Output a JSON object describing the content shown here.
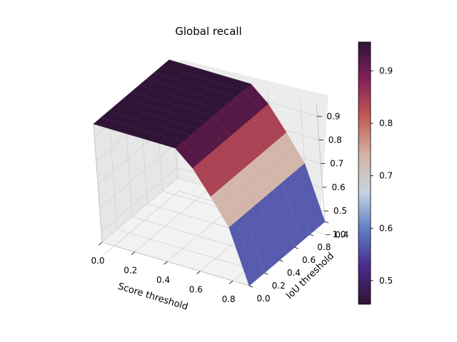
{
  "chart_data": {
    "type": "surface",
    "title": "Global recall",
    "xlabel": "Score threshold",
    "ylabel": "IoU threshold",
    "zlabel": "",
    "x_ticks": [
      "0.0",
      "0.2",
      "0.4",
      "0.6",
      "0.8"
    ],
    "y_ticks": [
      "0.0",
      "0.2",
      "0.4",
      "0.6",
      "0.8",
      "1.0"
    ],
    "z_ticks": [
      "0.4",
      "0.5",
      "0.6",
      "0.7",
      "0.8",
      "0.9"
    ],
    "xlim": [
      0,
      0.9
    ],
    "ylim": [
      0,
      1.0
    ],
    "zlim": [
      0.455,
      0.955
    ],
    "score_threshold": [
      0.0,
      0.1,
      0.2,
      0.3,
      0.4,
      0.5,
      0.6,
      0.7,
      0.8,
      0.9
    ],
    "iou_threshold": [
      0.0,
      0.1,
      0.2,
      0.3,
      0.4,
      0.5,
      0.6,
      0.7,
      0.8,
      0.9,
      1.0
    ],
    "recall_by_score_threshold": [
      0.955,
      0.955,
      0.955,
      0.955,
      0.955,
      0.955,
      0.89,
      0.79,
      0.68,
      0.455
    ],
    "grid": true,
    "colormap": "twilight_shifted",
    "colorbar": {
      "ticks": [
        "0.5",
        "0.6",
        "0.7",
        "0.8",
        "0.9"
      ],
      "range": [
        0.455,
        0.955
      ],
      "colors": [
        "#2f1436",
        "#4b2a8c",
        "#5e7fc6",
        "#c5d3e0",
        "#d4b3a4",
        "#c25a50",
        "#85205a",
        "#2f1436"
      ]
    }
  }
}
